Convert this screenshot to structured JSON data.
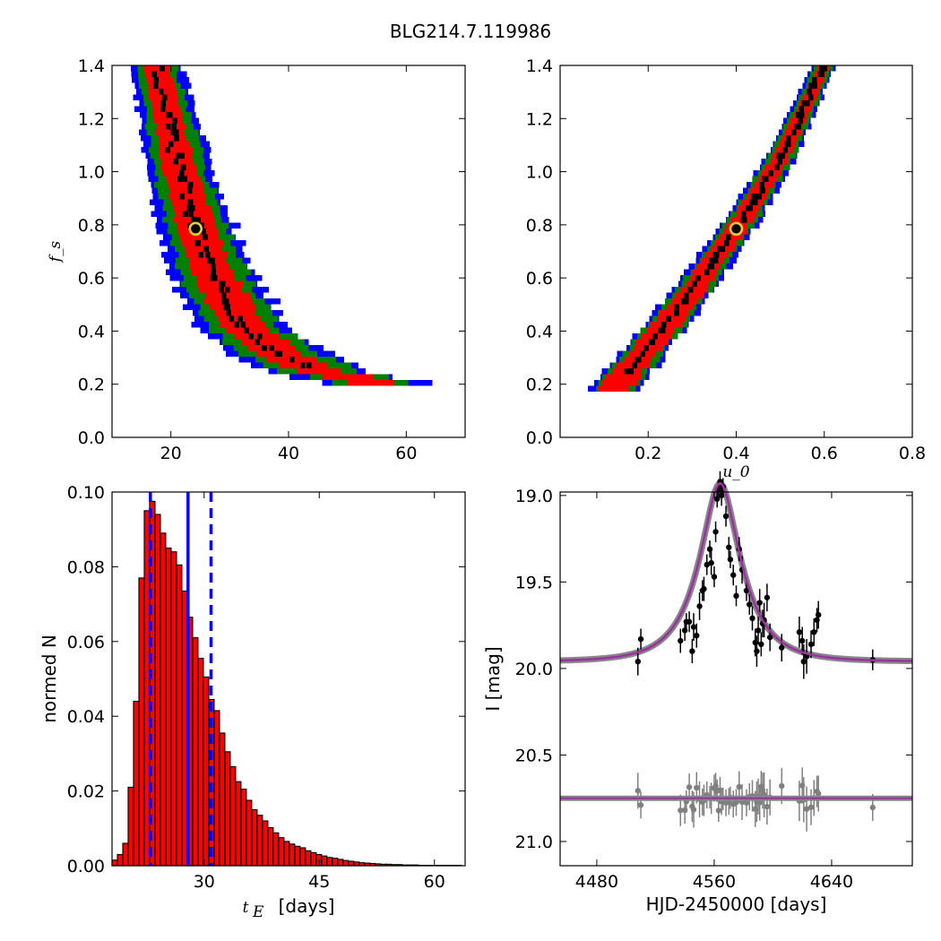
{
  "title": "BLG214.7.119986",
  "colors": {
    "sigma1": "#ff0000",
    "sigma2": "#008000",
    "sigma3": "#0000ff",
    "best": "#000000",
    "marker_edge": "#e6cc33",
    "hist_fill": "#ff0000",
    "hist_lines": "#0000ff",
    "data": "#000000",
    "residual": "#808080",
    "model": "#9933a0"
  },
  "chart_data": [
    {
      "type": "heatmap",
      "panel": "fs_vs_tE",
      "xlabel": "",
      "ylabel": "f_s",
      "xlim": [
        10,
        70
      ],
      "ylim": [
        0.0,
        1.4
      ],
      "xticks": [
        "20",
        "40",
        "60"
      ],
      "yticks": [
        "0.0",
        "0.2",
        "0.4",
        "0.6",
        "0.8",
        "1.0",
        "1.2",
        "1.4"
      ],
      "best_fit": {
        "x": 24.2,
        "y": 0.785
      },
      "ridge": [
        [
          17.5,
          1.4
        ],
        [
          19.5,
          1.2
        ],
        [
          21.5,
          1.0
        ],
        [
          24.2,
          0.8
        ],
        [
          27.5,
          0.6
        ],
        [
          32.0,
          0.42
        ],
        [
          38.0,
          0.32
        ],
        [
          45.0,
          0.25
        ],
        [
          55.0,
          0.2
        ]
      ],
      "band_halfwidth": {
        "sigma1": [
          2.0,
          4.0
        ],
        "sigma2": [
          3.0,
          6.5
        ],
        "sigma3": [
          4.0,
          8.5
        ]
      },
      "grid": false
    },
    {
      "type": "heatmap",
      "panel": "fs_vs_u0",
      "xlabel": "u_0",
      "ylabel": "",
      "xlim": [
        0.0,
        0.8
      ],
      "ylim": [
        0.0,
        1.4
      ],
      "xticks": [
        "0.2",
        "0.4",
        "0.6",
        "0.8"
      ],
      "yticks": [
        "0.0",
        "0.2",
        "0.4",
        "0.6",
        "0.8",
        "1.0",
        "1.2",
        "1.4"
      ],
      "best_fit": {
        "x": 0.4,
        "y": 0.785
      },
      "ridge": [
        [
          0.125,
          0.19
        ],
        [
          0.2,
          0.34
        ],
        [
          0.3,
          0.55
        ],
        [
          0.4,
          0.785
        ],
        [
          0.5,
          1.05
        ],
        [
          0.6,
          1.4
        ]
      ],
      "band_halfwidth": {
        "sigma1": [
          0.012,
          0.035
        ],
        "sigma2": [
          0.02,
          0.045
        ],
        "sigma3": [
          0.025,
          0.055
        ]
      },
      "grid": false
    },
    {
      "type": "bar",
      "panel": "tE_histogram",
      "xlabel": "t_E [days]",
      "xlabel_unit": "[days]",
      "ylabel": "normed N",
      "xlim": [
        18,
        64
      ],
      "ylim": [
        0.0,
        0.1
      ],
      "xticks": [
        "30",
        "45",
        "60"
      ],
      "yticks": [
        "0.00",
        "0.02",
        "0.04",
        "0.06",
        "0.08",
        "0.10"
      ],
      "bin_width": 0.7,
      "bin_start": 18,
      "values": [
        0.0015,
        0.003,
        0.006,
        0.021,
        0.044,
        0.077,
        0.095,
        0.0975,
        0.094,
        0.089,
        0.085,
        0.084,
        0.0805,
        0.0735,
        0.0665,
        0.061,
        0.0555,
        0.0505,
        0.0445,
        0.0415,
        0.0355,
        0.0305,
        0.0265,
        0.0225,
        0.0205,
        0.0175,
        0.015,
        0.0135,
        0.012,
        0.0102,
        0.0088,
        0.0075,
        0.0065,
        0.0058,
        0.0052,
        0.0048,
        0.004,
        0.0035,
        0.003,
        0.0026,
        0.0022,
        0.002,
        0.0017,
        0.0014,
        0.0012,
        0.001,
        0.0008,
        0.0007,
        0.0006,
        0.0005,
        0.0004,
        0.0004,
        0.0003,
        0.0003,
        0.0002,
        0.0002,
        0.0002,
        0.0001,
        0.0001,
        0.0001,
        0.0001,
        0.0001,
        0.0001,
        0.0001,
        0.0001
      ],
      "median": 27.9,
      "lower": 23.0,
      "upper": 30.9,
      "grid": false
    },
    {
      "type": "scatter",
      "panel": "light_curve",
      "xlabel": "HJD-2450000 [days]",
      "ylabel": "I [mag]",
      "xlim": [
        4455,
        4695
      ],
      "ylim": [
        21.14,
        18.98
      ],
      "ylim_display": "inverted",
      "xticks": [
        "4480",
        "4560",
        "4640"
      ],
      "yticks": [
        "19.0",
        "19.5",
        "20.0",
        "20.5",
        "21.0"
      ],
      "model": {
        "baseline": 19.96,
        "peak_mag": 18.93,
        "t0": 4564,
        "tE": 27.9,
        "u0": 0.4,
        "fs": 0.785
      },
      "residual_offset": 20.75,
      "data": [
        [
          4510,
          19.83,
          0.06
        ],
        [
          4508,
          19.96,
          0.08
        ],
        [
          4537,
          19.84,
          0.07
        ],
        [
          4540,
          19.78,
          0.06
        ],
        [
          4541,
          19.73,
          0.05
        ],
        [
          4543,
          19.73,
          0.06
        ],
        [
          4545,
          19.9,
          0.07
        ],
        [
          4546,
          19.76,
          0.08
        ],
        [
          4548,
          19.81,
          0.07
        ],
        [
          4550,
          19.64,
          0.08
        ],
        [
          4552,
          19.55,
          0.06
        ],
        [
          4553,
          19.54,
          0.07
        ],
        [
          4555,
          19.4,
          0.06
        ],
        [
          4557,
          19.31,
          0.05
        ],
        [
          4558,
          19.39,
          0.07
        ],
        [
          4560,
          19.47,
          0.06
        ],
        [
          4561,
          19.21,
          0.06
        ],
        [
          4562,
          19.02,
          0.05
        ],
        [
          4563,
          18.97,
          0.05
        ],
        [
          4564,
          18.92,
          0.06
        ],
        [
          4565,
          19.0,
          0.06
        ],
        [
          4566,
          18.95,
          0.05
        ],
        [
          4568,
          19.12,
          0.06
        ],
        [
          4570,
          19.3,
          0.06
        ],
        [
          4571,
          19.37,
          0.05
        ],
        [
          4573,
          19.46,
          0.06
        ],
        [
          4575,
          19.58,
          0.06
        ],
        [
          4577,
          19.31,
          0.07
        ],
        [
          4579,
          19.43,
          0.08
        ],
        [
          4582,
          19.55,
          0.06
        ],
        [
          4584,
          19.63,
          0.06
        ],
        [
          4586,
          19.71,
          0.07
        ],
        [
          4588,
          19.85,
          0.08
        ],
        [
          4589,
          19.9,
          0.09
        ],
        [
          4590,
          19.78,
          0.08
        ],
        [
          4591,
          19.62,
          0.08
        ],
        [
          4592,
          19.86,
          0.07
        ],
        [
          4593,
          19.74,
          0.08
        ],
        [
          4594,
          19.72,
          0.1
        ],
        [
          4596,
          19.59,
          0.08
        ],
        [
          4598,
          19.82,
          0.08
        ],
        [
          4606,
          19.88,
          0.08
        ],
        [
          4618,
          19.79,
          0.09
        ],
        [
          4620,
          19.84,
          0.08
        ],
        [
          4621,
          19.96,
          0.1
        ],
        [
          4623,
          19.93,
          0.1
        ],
        [
          4626,
          19.86,
          0.08
        ],
        [
          4628,
          19.79,
          0.08
        ],
        [
          4630,
          19.72,
          0.07
        ],
        [
          4631,
          19.69,
          0.08
        ],
        [
          4668,
          19.95,
          0.06
        ]
      ],
      "grid": false
    }
  ]
}
